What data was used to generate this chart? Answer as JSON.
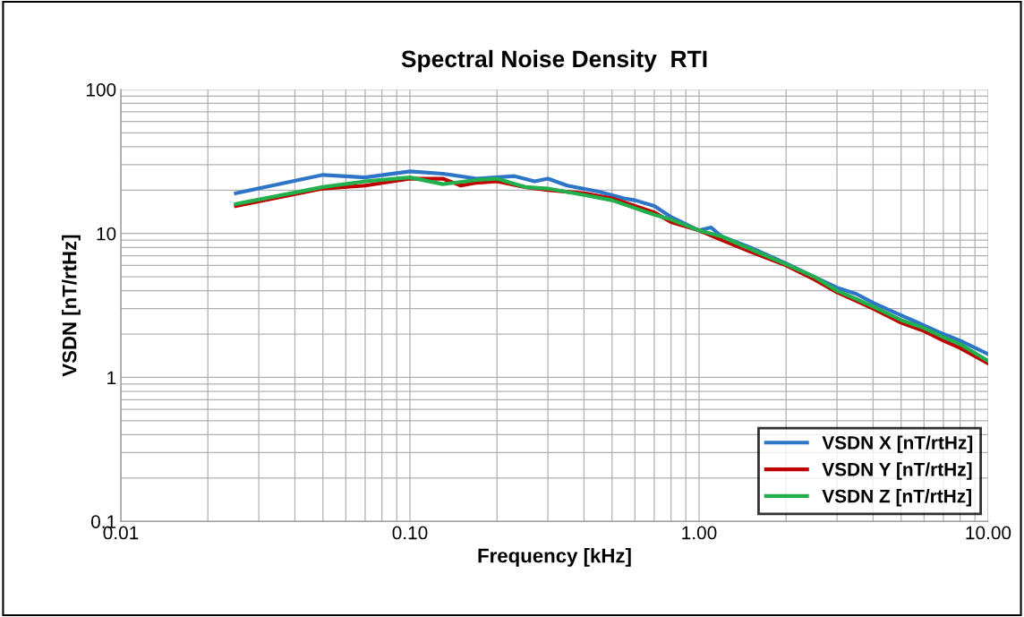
{
  "chart_data": {
    "type": "line",
    "title": "Spectral Noise Density  RTI",
    "xlabel": "Frequency [kHz]",
    "ylabel": "VSDN [nT/rtHz]",
    "log": "xy",
    "grid": true,
    "legend": "bottom right",
    "line_style": "solid",
    "xlim": [
      0.01,
      10
    ],
    "ylim": [
      0.1,
      100
    ],
    "xticks": [
      0.01,
      {
        "value": 0.1,
        "label": "0.10"
      },
      {
        "value": 1,
        "label": "1.00"
      },
      {
        "value": 10,
        "label": "10.00"
      }
    ],
    "yticks": [
      0.1,
      1,
      10,
      100
    ],
    "series": [
      {
        "name": "VSDN X [nT/rtHz]",
        "color": "#2e75c8",
        "x": [
          0.025,
          0.05,
          0.07,
          0.1,
          0.13,
          0.17,
          0.23,
          0.27,
          0.3,
          0.35,
          0.45,
          0.55,
          0.6,
          0.7,
          0.8,
          1.0,
          1.1,
          1.2,
          1.5,
          2,
          2.5,
          3,
          3.5,
          4,
          5,
          6,
          7,
          8,
          10
        ],
        "values": [
          19,
          25.5,
          24.5,
          27,
          26,
          24,
          25,
          23,
          24,
          21.5,
          19.5,
          17.5,
          17,
          15.5,
          13,
          10.5,
          11,
          9.5,
          8,
          6.2,
          5,
          4.2,
          3.8,
          3.3,
          2.7,
          2.3,
          2.0,
          1.8,
          1.45
        ]
      },
      {
        "name": "VSDN Y [nT/rtHz]",
        "color": "#c00000",
        "x": [
          0.025,
          0.05,
          0.07,
          0.1,
          0.13,
          0.15,
          0.17,
          0.2,
          0.25,
          0.3,
          0.4,
          0.5,
          0.6,
          0.7,
          0.8,
          1.0,
          1.2,
          1.5,
          2,
          2.5,
          3,
          3.5,
          4,
          5,
          6,
          7,
          8,
          10
        ],
        "values": [
          15.5,
          20.5,
          21.5,
          24,
          24,
          21.5,
          22.5,
          23,
          21,
          20,
          19,
          17.5,
          15.5,
          14,
          12,
          10.5,
          9,
          7.5,
          6,
          4.8,
          3.9,
          3.4,
          3.0,
          2.4,
          2.1,
          1.8,
          1.6,
          1.25
        ]
      },
      {
        "name": "VSDN Z [nT/rtHz]",
        "color": "#21b04b",
        "x": [
          0.025,
          0.05,
          0.07,
          0.1,
          0.13,
          0.17,
          0.2,
          0.25,
          0.3,
          0.4,
          0.5,
          0.6,
          0.7,
          0.8,
          1.0,
          1.2,
          1.5,
          2,
          2.5,
          3,
          3.5,
          4,
          5,
          6,
          7,
          8,
          10
        ],
        "values": [
          16,
          21,
          23,
          24.5,
          22,
          23.5,
          24,
          21,
          20.5,
          18.5,
          17,
          15,
          13.5,
          12.5,
          10.5,
          9.5,
          7.8,
          6.1,
          5,
          4,
          3.5,
          3.1,
          2.5,
          2.2,
          1.9,
          1.7,
          1.3
        ]
      }
    ]
  }
}
